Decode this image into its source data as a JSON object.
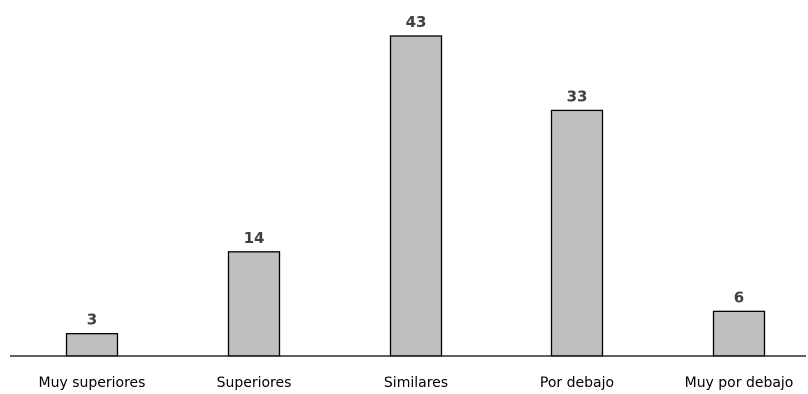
{
  "chart_data": {
    "type": "bar",
    "title": "",
    "xlabel": "",
    "ylabel": "",
    "categories": [
      "Muy superiores",
      "Superiores",
      "Similares",
      "Por debajo",
      "Muy por debajo"
    ],
    "values": [
      3,
      14,
      43,
      33,
      6
    ],
    "data_labels": [
      "3",
      "14",
      "43",
      "33",
      "6"
    ],
    "ylim": [
      0,
      43
    ],
    "grid": false,
    "legend": "none",
    "colors": {
      "bar_fill": "#bfbfbf",
      "bar_stroke": "#000000",
      "label_text": "#404040",
      "axis": "#000000"
    }
  }
}
